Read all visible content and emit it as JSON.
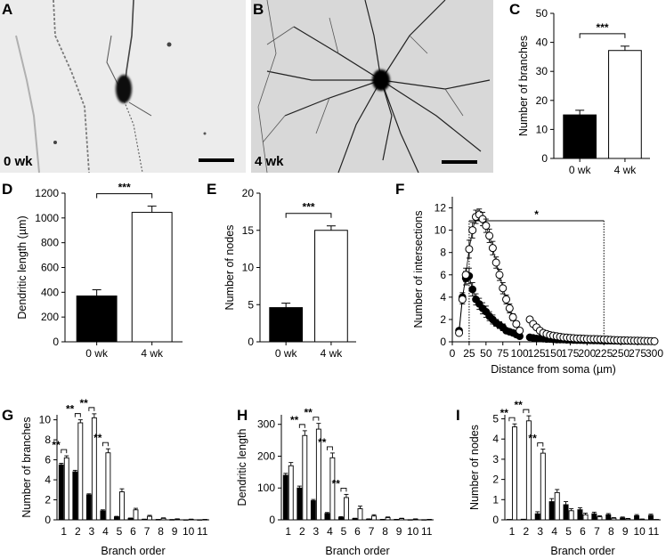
{
  "figure": {
    "panels": {
      "A": {
        "letter": "A",
        "label": "0 wk"
      },
      "B": {
        "letter": "B",
        "label": "4 wk"
      }
    }
  },
  "chart_data": [
    {
      "id": "C",
      "letter": "C",
      "type": "bar",
      "categories": [
        "0 wk",
        "4 wk"
      ],
      "values": [
        15,
        37.2
      ],
      "errors": [
        1.6,
        1.5
      ],
      "fills": [
        "#000000",
        "#ffffff"
      ],
      "ylabel": "Number of branches",
      "xlabel": "",
      "ylim": [
        0,
        50
      ],
      "yticks": [
        "0",
        "10",
        "20",
        "30",
        "40",
        "50"
      ],
      "significance": "***"
    },
    {
      "id": "D",
      "letter": "D",
      "type": "bar",
      "categories": [
        "0 wk",
        "4 wk"
      ],
      "values": [
        370,
        1045
      ],
      "errors": [
        50,
        50
      ],
      "fills": [
        "#000000",
        "#ffffff"
      ],
      "ylabel": "Dendritic length (µm)",
      "xlabel": "",
      "ylim": [
        0,
        1200
      ],
      "yticks": [
        "0",
        "200",
        "400",
        "600",
        "800",
        "1000",
        "1200"
      ],
      "significance": "***"
    },
    {
      "id": "E",
      "letter": "E",
      "type": "bar",
      "categories": [
        "0 wk",
        "4 wk"
      ],
      "values": [
        4.6,
        15
      ],
      "errors": [
        0.6,
        0.6
      ],
      "fills": [
        "#000000",
        "#ffffff"
      ],
      "ylabel": "Number of nodes",
      "xlabel": "",
      "ylim": [
        0,
        20
      ],
      "yticks": [
        "0",
        "5",
        "10",
        "15",
        "20"
      ],
      "significance": "***"
    },
    {
      "id": "F",
      "letter": "F",
      "type": "scatter",
      "xlabel": "Distance from soma (µm)",
      "ylabel": "Number of intersections",
      "xlim": [
        0,
        300
      ],
      "ylim": [
        0,
        13
      ],
      "xticks": [
        "0",
        "25",
        "50",
        "75",
        "100",
        "125",
        "150",
        "175",
        "200",
        "225",
        "250",
        "275",
        "300"
      ],
      "yticks": [
        "0",
        "2",
        "4",
        "6",
        "8",
        "10",
        "12"
      ],
      "significance": "*",
      "sig_range": [
        25,
        225
      ],
      "series": [
        {
          "marker": "filled",
          "x": [
            10,
            15,
            20,
            25,
            30,
            35,
            40,
            45,
            50,
            55,
            60,
            65,
            70,
            75,
            80,
            85,
            90,
            95,
            100
          ],
          "y": [
            1.0,
            4.0,
            5.7,
            5.9,
            4.7,
            3.8,
            3.4,
            3.0,
            2.7,
            2.3,
            2.0,
            1.7,
            1.5,
            1.3,
            1.0,
            0.9,
            0.8,
            0.65,
            0.5
          ],
          "err": [
            0.15,
            0.4,
            0.6,
            0.7,
            0.6,
            0.5,
            0.5,
            0.5,
            0.5,
            0.4,
            0.4,
            0.3,
            0.3,
            0.3,
            0.2,
            0.2,
            0.15,
            0.1,
            0.1
          ]
        },
        {
          "marker": "filled",
          "x": [
            115,
            120,
            125,
            130,
            135,
            140,
            145,
            150,
            155,
            160,
            165,
            170,
            175,
            180,
            185,
            190,
            195,
            200,
            205,
            210,
            215,
            220,
            225,
            230,
            235,
            240,
            245,
            250,
            255,
            260,
            265,
            270,
            275,
            280,
            285,
            290,
            295,
            300
          ],
          "y": [
            0.4,
            0.35,
            0.3,
            0.3,
            0.28,
            0.25,
            0.25,
            0.22,
            0.2,
            0.2,
            0.2,
            0.18,
            0.18,
            0.16,
            0.15,
            0.15,
            0.14,
            0.14,
            0.13,
            0.12,
            0.12,
            0.11,
            0.1,
            0.1,
            0.1,
            0.09,
            0.09,
            0.08,
            0.08,
            0.08,
            0.07,
            0.07,
            0.06,
            0.06,
            0.05,
            0.05,
            0.05,
            0.05
          ],
          "err": []
        },
        {
          "marker": "open",
          "x": [
            10,
            15,
            20,
            25,
            30,
            35,
            40,
            45,
            50,
            55,
            60,
            65,
            70,
            75,
            80,
            85,
            90,
            95,
            100
          ],
          "y": [
            0.8,
            3.8,
            6.0,
            8.3,
            10.0,
            11.2,
            11.4,
            11.0,
            10.4,
            9.5,
            8.4,
            7.1,
            6.0,
            4.8,
            3.8,
            3.0,
            2.2,
            1.6,
            1.0
          ],
          "err": [
            0.15,
            0.4,
            0.6,
            0.8,
            0.7,
            0.6,
            0.5,
            0.6,
            0.6,
            0.6,
            0.6,
            0.5,
            0.5,
            0.5,
            0.4,
            0.4,
            0.3,
            0.2,
            0.15
          ]
        },
        {
          "marker": "open",
          "x": [
            115,
            120,
            125,
            130,
            135,
            140,
            145,
            150,
            155,
            160,
            165,
            170,
            175,
            180,
            185,
            190,
            195,
            200,
            205,
            210,
            215,
            220,
            225,
            230,
            235,
            240,
            245,
            250,
            255,
            260,
            265,
            270,
            275,
            280,
            285,
            290,
            295,
            300
          ],
          "y": [
            2.0,
            1.6,
            1.3,
            1.0,
            0.8,
            0.7,
            0.6,
            0.55,
            0.5,
            0.45,
            0.4,
            0.38,
            0.35,
            0.33,
            0.3,
            0.3,
            0.28,
            0.26,
            0.25,
            0.25,
            0.24,
            0.23,
            0.22,
            0.2,
            0.18,
            0.16,
            0.15,
            0.14,
            0.13,
            0.12,
            0.11,
            0.1,
            0.1,
            0.09,
            0.08,
            0.07,
            0.06,
            0.05
          ],
          "err": []
        }
      ]
    },
    {
      "id": "G",
      "letter": "G",
      "type": "bar",
      "categories": [
        "1",
        "2",
        "3",
        "4",
        "5",
        "6",
        "7",
        "8",
        "9",
        "10",
        "11"
      ],
      "xlabel": "Branch order",
      "ylabel": "Number of branches",
      "ylim": [
        0,
        10.5
      ],
      "yticks": [
        "0",
        "2",
        "4",
        "6",
        "8",
        "10"
      ],
      "series": [
        {
          "fill": "#000000",
          "values": [
            5.5,
            4.8,
            2.5,
            0.9,
            0.3,
            0.15,
            0.05,
            0.03,
            0.02,
            0.01,
            0.01
          ],
          "errors": [
            0.15,
            0.15,
            0.1,
            0.1,
            0.05,
            0.03,
            0.02,
            0.01,
            0.01,
            0,
            0
          ]
        },
        {
          "fill": "#ffffff",
          "values": [
            6.2,
            9.7,
            10.2,
            6.7,
            2.8,
            1.0,
            0.35,
            0.15,
            0.07,
            0.05,
            0.03
          ],
          "errors": [
            0.2,
            0.3,
            0.4,
            0.4,
            0.3,
            0.15,
            0.1,
            0.05,
            0.03,
            0.02,
            0.01
          ]
        }
      ],
      "significance": [
        "**",
        "**",
        "**",
        "**",
        "",
        "",
        "",
        "",
        "",
        "",
        ""
      ]
    },
    {
      "id": "H",
      "letter": "H",
      "type": "bar",
      "categories": [
        "1",
        "2",
        "3",
        "4",
        "5",
        "6",
        "7",
        "8",
        "9",
        "10",
        "11"
      ],
      "xlabel": "Branch order",
      "ylabel": "Dendritic length",
      "ylim": [
        0,
        330
      ],
      "yticks": [
        "0",
        "100",
        "200",
        "300"
      ],
      "series": [
        {
          "fill": "#000000",
          "values": [
            140,
            100,
            60,
            20,
            8,
            4,
            2,
            1,
            1,
            0.5,
            0.5
          ],
          "errors": [
            6,
            6,
            4,
            3,
            2,
            1,
            1,
            0.5,
            0.5,
            0,
            0
          ]
        },
        {
          "fill": "#ffffff",
          "values": [
            170,
            265,
            285,
            195,
            70,
            35,
            12,
            7,
            4,
            2,
            1
          ],
          "errors": [
            10,
            15,
            18,
            15,
            10,
            8,
            4,
            2,
            1,
            1,
            0.5
          ]
        }
      ],
      "significance": [
        "",
        "**",
        "**",
        "**",
        "**",
        "",
        "",
        "",
        "",
        "",
        ""
      ]
    },
    {
      "id": "I",
      "letter": "I",
      "type": "bar",
      "categories": [
        "1",
        "2",
        "3",
        "4",
        "5",
        "6",
        "7",
        "8",
        "9",
        "10",
        "11"
      ],
      "xlabel": "Branch order",
      "ylabel": "Number of nodes",
      "ylim": [
        0,
        5.2
      ],
      "yticks": [
        "0",
        "1",
        "2",
        "3",
        "4",
        "5"
      ],
      "series": [
        {
          "fill": "#000000",
          "values": [
            0.02,
            0.03,
            0.3,
            0.9,
            0.75,
            0.5,
            0.3,
            0.25,
            0.1,
            0.2,
            0.22
          ],
          "errors": [
            0,
            0,
            0.1,
            0.15,
            0.15,
            0.1,
            0.08,
            0.06,
            0.04,
            0.06,
            0.06
          ]
        },
        {
          "fill": "#ffffff",
          "values": [
            4.6,
            4.9,
            3.3,
            1.35,
            0.45,
            0.25,
            0.15,
            0.08,
            0.05,
            0.03,
            0.02
          ],
          "errors": [
            0.15,
            0.25,
            0.2,
            0.15,
            0.1,
            0.08,
            0.05,
            0.03,
            0.02,
            0.01,
            0
          ]
        }
      ],
      "significance": [
        "**",
        "**",
        "**",
        "",
        "",
        "",
        "",
        "",
        "",
        "",
        ""
      ]
    }
  ]
}
